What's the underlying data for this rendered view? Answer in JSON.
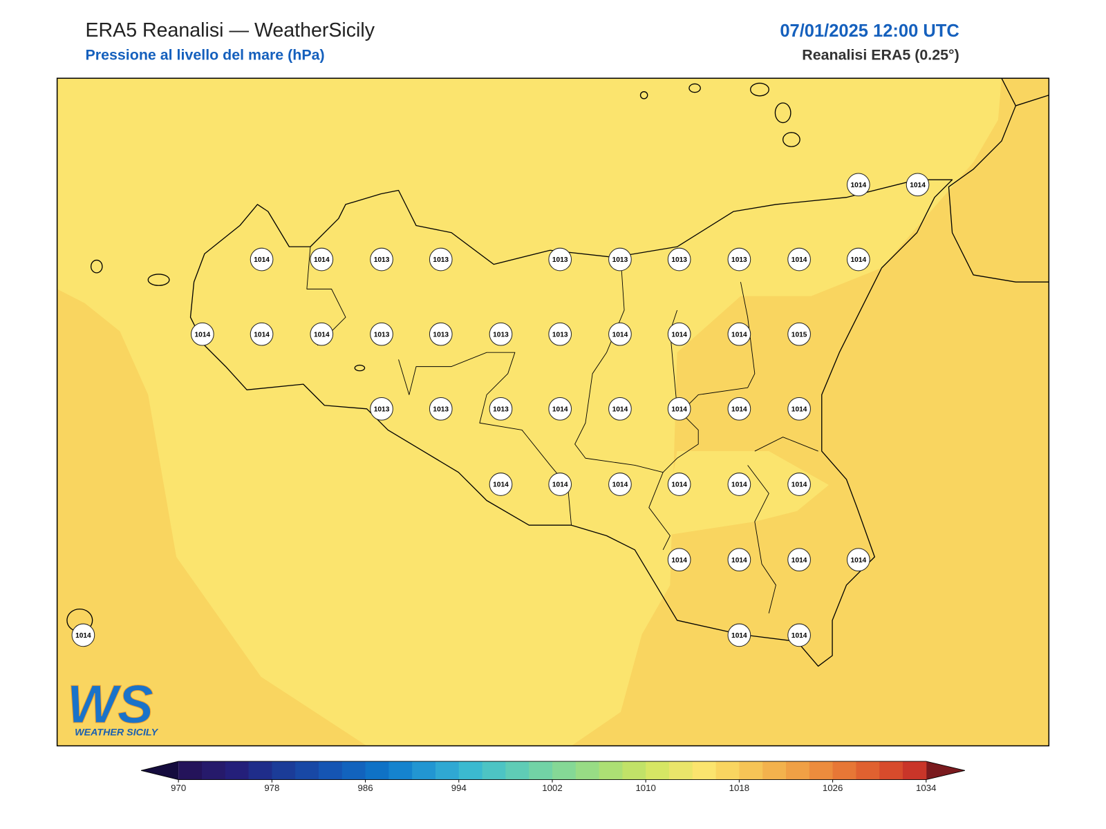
{
  "header": {
    "title": "ERA5 Reanalisi — WeatherSicily",
    "subtitle": "Pressione al livello del mare (hPa)",
    "datetime": "07/01/2025 12:00 UTC",
    "source": "Reanalisi ERA5 (0.25°)"
  },
  "logo": {
    "mark": "WS",
    "name": "WEATHER SICILY"
  },
  "stations": [
    1014,
    1014,
    1014,
    1014,
    1013,
    1013,
    1013,
    1013,
    1013,
    1013,
    1014,
    1014,
    1014,
    1014,
    1014,
    1013,
    1013,
    1013,
    1013,
    1014,
    1014,
    1014,
    1015,
    1013,
    1013,
    1013,
    1014,
    1014,
    1014,
    1014,
    1014,
    1014,
    1014,
    1014,
    1014,
    1014,
    1014,
    1014,
    1014,
    1014,
    1014,
    1014,
    1014,
    1014
  ],
  "colorbar": {
    "lim": [
      970,
      1034
    ],
    "ticks": [
      970,
      978,
      986,
      994,
      1002,
      1010,
      1018,
      1026,
      1034
    ],
    "colors": [
      "#24135a",
      "#261a6b",
      "#241f7a",
      "#1f2d8a",
      "#1b3c98",
      "#1848a5",
      "#1555b3",
      "#1263bd",
      "#0f72c6",
      "#1583ce",
      "#2296d2",
      "#2fa8d3",
      "#3bbad0",
      "#4dc4c4",
      "#5fccb6",
      "#72d3a6",
      "#85d896",
      "#98dc85",
      "#acdf74",
      "#c1e268",
      "#d6e664",
      "#eae56a",
      "#fbe46e",
      "#f9d560",
      "#f6c456",
      "#f3b24d",
      "#f0a045",
      "#ec8c3d",
      "#e77736",
      "#e06130",
      "#d74b2c",
      "#c93529"
    ],
    "under_color": "#150c3e",
    "over_color": "#7a1a1e"
  }
}
